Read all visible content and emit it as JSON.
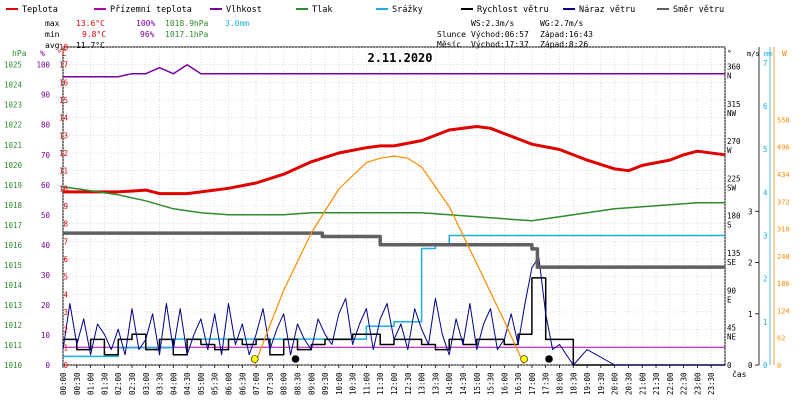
{
  "chart_data": {
    "type": "line",
    "title": "2.11.2020",
    "legend": {
      "placement": "top",
      "items": [
        {
          "label": "Teplota",
          "color": "#e00000"
        },
        {
          "label": "Přízemní teplota",
          "color": "#b000b0"
        },
        {
          "label": "Vlhkost",
          "color": "#7a00a0"
        },
        {
          "label": "Tlak",
          "color": "#2e8b2e"
        },
        {
          "label": "Srážky",
          "color": "#1ab0e0"
        },
        {
          "label": "Rychlost větru",
          "color": "#000000"
        },
        {
          "label": "Náraz větru",
          "color": "#00008b"
        },
        {
          "label": "Směr větru",
          "color": "#606060"
        }
      ]
    },
    "stats": {
      "max_label": "max",
      "max_temp": "13.6°C",
      "max_hum": "100%",
      "max_press": "1018.9hPa",
      "max_rain": "3.0mm",
      "min_label": "min",
      "min_temp": "9.8°C",
      "min_hum": "96%",
      "min_press": "1017.1hPa",
      "avg_label": "avg",
      "avg_temp": "11.7°C",
      "ws": "WS:2.3m/s",
      "wg": "WG:2.7m/s",
      "sun_label": "Slunce",
      "sun_rise": "Východ:06:57",
      "sun_set": "Západ:16:43",
      "moon_label": "Měsíc",
      "moon_rise": "Východ:17:37",
      "moon_set": "Západ:8:26"
    },
    "left_axes": {
      "hpa_unit": "hPa",
      "pct_unit": "%",
      "c_unit": "°C",
      "hpa_ticks": [
        "1010",
        "1011",
        "1012",
        "1013",
        "1014",
        "1015",
        "1016",
        "1017",
        "1018",
        "1019",
        "1020",
        "1021",
        "1022",
        "1023",
        "1024",
        "1025"
      ],
      "pct_ticks": [
        "0",
        "10",
        "20",
        "30",
        "40",
        "50",
        "60",
        "70",
        "80",
        "90",
        "100"
      ],
      "c_ticks": [
        "0",
        "1",
        "2",
        "3",
        "4",
        "5",
        "6",
        "7",
        "8",
        "9",
        "10",
        "11",
        "12",
        "13",
        "14",
        "15",
        "16",
        "17",
        "18"
      ]
    },
    "right_axes": {
      "deg_unit": "°",
      "ms_unit": "m/s",
      "mm_unit": "mm",
      "w_unit": "W",
      "deg_ticks": [
        "0",
        "45",
        "90",
        "135",
        "180",
        "225",
        "270",
        "315",
        "360"
      ],
      "dir_ticks": [
        "",
        "NE",
        "E",
        "SE",
        "S",
        "SW",
        "W",
        "NW",
        "N"
      ],
      "ms_ticks": [
        "0",
        "1",
        "2",
        "3"
      ],
      "mm_ticks": [
        "0",
        "1",
        "2",
        "3",
        "4",
        "5",
        "6",
        "7"
      ],
      "w_ticks": [
        "0",
        "62",
        "124",
        "186",
        "248",
        "310",
        "372",
        "434",
        "496",
        "558"
      ]
    },
    "x_axis": {
      "label": "čas",
      "ticks": [
        "00:00",
        "00:30",
        "01:00",
        "01:30",
        "02:00",
        "02:30",
        "03:00",
        "03:30",
        "04:00",
        "04:30",
        "05:00",
        "05:30",
        "06:00",
        "06:30",
        "07:00",
        "07:30",
        "08:00",
        "08:30",
        "09:00",
        "09:30",
        "10:00",
        "10:30",
        "11:00",
        "11:30",
        "12:00",
        "12:30",
        "13:00",
        "13:30",
        "14:00",
        "14:30",
        "15:00",
        "15:30",
        "16:00",
        "16:30",
        "17:00",
        "17:30",
        "18:00",
        "18:30",
        "19:00",
        "19:30",
        "20:00",
        "20:30",
        "21:00",
        "21:30",
        "22:00",
        "22:30",
        "23:00",
        "23:30"
      ]
    },
    "grid": true,
    "series": [
      {
        "name": "Teplota",
        "axis": "°C",
        "color": "#e00000",
        "x": [
          0,
          1,
          2,
          3,
          3.5,
          4.5,
          5,
          6,
          7,
          8,
          9,
          10,
          11,
          11.5,
          12,
          13,
          14,
          14.5,
          15,
          15.5,
          16,
          16.5,
          17,
          18,
          19,
          20,
          20.5,
          21,
          22,
          22.5,
          23,
          24
        ],
        "values": [
          9.8,
          9.8,
          9.8,
          9.9,
          9.7,
          9.7,
          9.8,
          10.0,
          10.3,
          10.8,
          11.5,
          12.0,
          12.3,
          12.4,
          12.4,
          12.7,
          13.3,
          13.4,
          13.5,
          13.4,
          13.1,
          12.8,
          12.5,
          12.2,
          11.6,
          11.1,
          11.0,
          11.3,
          11.6,
          11.9,
          12.1,
          11.9
        ]
      },
      {
        "name": "Přízemní teplota",
        "axis": "°C",
        "color": "#b000b0",
        "x": [
          0,
          24
        ],
        "values": [
          1,
          1
        ]
      },
      {
        "name": "Vlhkost",
        "axis": "%",
        "color": "#7a00a0",
        "x": [
          0,
          2,
          2.5,
          3,
          3.5,
          4,
          4.5,
          5,
          24
        ],
        "values": [
          96,
          96,
          97,
          97,
          99,
          97,
          100,
          97,
          97
        ]
      },
      {
        "name": "Tlak",
        "axis": "hPa",
        "color": "#2e8b2e",
        "x": [
          0,
          1,
          2,
          3,
          4,
          5,
          6,
          7,
          8,
          9,
          10,
          11,
          12,
          13,
          14,
          15,
          16,
          17,
          18,
          19,
          20,
          21,
          22,
          23,
          24
        ],
        "values": [
          1018.9,
          1018.7,
          1018.5,
          1018.2,
          1017.8,
          1017.6,
          1017.5,
          1017.5,
          1017.5,
          1017.6,
          1017.6,
          1017.6,
          1017.6,
          1017.6,
          1017.5,
          1017.4,
          1017.3,
          1017.2,
          1017.4,
          1017.6,
          1017.8,
          1017.9,
          1018.0,
          1018.1,
          1018.1
        ]
      },
      {
        "name": "Srážky",
        "axis": "mm",
        "color": "#1ab0e0",
        "x": [
          0,
          2,
          4,
          6,
          8,
          10,
          11,
          12,
          13,
          13.5,
          14,
          15,
          16,
          20,
          24
        ],
        "values": [
          0.2,
          0.4,
          0.6,
          0.6,
          0.6,
          0.6,
          0.9,
          1.0,
          2.7,
          2.8,
          3.0,
          3.0,
          3.0,
          3.0,
          3.0
        ]
      },
      {
        "name": "Rychlost větru",
        "axis": "m/s",
        "color": "#000000",
        "x": [
          0,
          0.5,
          1,
          1.5,
          2,
          2.5,
          3,
          3.5,
          4,
          4.5,
          5,
          5.5,
          6,
          6.5,
          7,
          7.5,
          8,
          8.5,
          9,
          9.5,
          10,
          10.5,
          11,
          11.5,
          12,
          12.5,
          13,
          13.5,
          14,
          14.5,
          15,
          15.5,
          16,
          16.5,
          17,
          17.5,
          18,
          18.5,
          19,
          20,
          21,
          22,
          23,
          24
        ],
        "values": [
          0.5,
          0.3,
          0.5,
          0.2,
          0.5,
          0.6,
          0.3,
          0.5,
          0.2,
          0.5,
          0.4,
          0.3,
          0.5,
          0.4,
          0.5,
          0.2,
          0.5,
          0.3,
          0.4,
          0.5,
          0.5,
          0.6,
          0.6,
          0.4,
          0.5,
          0.5,
          0.4,
          0.3,
          0.5,
          0.4,
          0.5,
          0.5,
          0.4,
          0.6,
          1.7,
          0.5,
          0.5,
          0.0,
          0.0,
          0.0,
          0.0,
          0.0,
          0.0,
          0.0
        ]
      },
      {
        "name": "Náraz větru",
        "axis": "m/s",
        "color": "#00008b",
        "x": [
          0,
          0.25,
          0.5,
          0.75,
          1,
          1.25,
          1.5,
          1.75,
          2,
          2.25,
          2.5,
          2.75,
          3,
          3.25,
          3.5,
          3.75,
          4,
          4.25,
          4.5,
          4.75,
          5,
          5.25,
          5.5,
          5.75,
          6,
          6.25,
          6.5,
          6.75,
          7,
          7.25,
          7.5,
          7.75,
          8,
          8.25,
          8.5,
          8.75,
          9,
          9.25,
          9.5,
          9.75,
          10,
          10.25,
          10.5,
          10.75,
          11,
          11.25,
          11.5,
          11.75,
          12,
          12.25,
          12.5,
          12.75,
          13,
          13.25,
          13.5,
          13.75,
          14,
          14.25,
          14.5,
          14.75,
          15,
          15.25,
          15.5,
          15.75,
          16,
          16.25,
          16.5,
          16.75,
          17,
          17.25,
          17.5,
          17.75,
          18,
          18.5,
          19,
          20,
          21,
          22,
          23,
          24
        ],
        "values": [
          0.3,
          1.2,
          0.4,
          0.9,
          0.2,
          0.8,
          0.6,
          0.3,
          0.7,
          0.2,
          1.1,
          0.3,
          0.5,
          1.0,
          0.2,
          1.2,
          0.3,
          1.1,
          0.2,
          0.6,
          0.9,
          0.3,
          1.0,
          0.2,
          1.2,
          0.4,
          0.8,
          0.2,
          0.6,
          1.1,
          0.3,
          0.7,
          1.0,
          0.2,
          0.8,
          0.5,
          0.3,
          0.9,
          0.6,
          0.4,
          1.0,
          1.3,
          0.4,
          0.8,
          1.1,
          0.3,
          0.9,
          1.2,
          0.5,
          0.8,
          0.3,
          1.1,
          0.7,
          0.4,
          1.3,
          0.6,
          0.2,
          0.9,
          0.4,
          1.2,
          0.3,
          0.8,
          1.1,
          0.3,
          0.5,
          1.0,
          0.4,
          1.2,
          1.9,
          2.1,
          1.0,
          0.3,
          0.4,
          0.0,
          0.3,
          0.0,
          0.0,
          0.0,
          0.0,
          0.0
        ]
      },
      {
        "name": "Směr větru",
        "axis": "°",
        "color": "#606060",
        "x": [
          0,
          9.3,
          9.4,
          11,
          11.5,
          16.5,
          17,
          17.2,
          24
        ],
        "values": [
          159,
          159,
          155,
          155,
          145,
          145,
          140,
          118,
          118
        ]
      },
      {
        "name": "Slunce",
        "axis": "W",
        "color": "#ff8c00",
        "x": [
          6.95,
          7.5,
          8,
          9,
          10,
          11,
          11.5,
          12,
          12.5,
          13,
          14,
          15,
          16,
          16.72
        ],
        "values": [
          0,
          90,
          170,
          300,
          400,
          460,
          470,
          475,
          470,
          450,
          360,
          230,
          100,
          0
        ]
      }
    ],
    "markers": [
      {
        "name": "sunrise",
        "x": 6.95,
        "color": "#ffff00"
      },
      {
        "name": "sunset",
        "x": 16.72,
        "color": "#ffff00"
      },
      {
        "name": "moonset",
        "x": 8.43,
        "color": "#000000"
      },
      {
        "name": "moonrise",
        "x": 17.62,
        "color": "#000000"
      }
    ]
  }
}
